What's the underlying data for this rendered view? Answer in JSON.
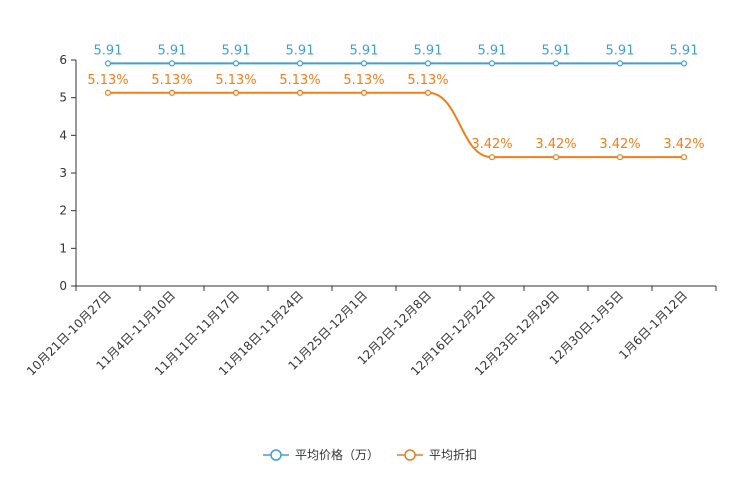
{
  "chart_data": {
    "type": "line",
    "categories": [
      "10月21日-10月27日",
      "11月4日-11月10日",
      "11月11日-11月17日",
      "11月18日-11月24日",
      "11月25日-12月1日",
      "12月2日-12月8日",
      "12月16日-12月22日",
      "12月23日-12月29日",
      "12月30日-1月5日",
      "1月6日-1月12日"
    ],
    "ylim": [
      0,
      6
    ],
    "yticks": [
      0,
      1,
      2,
      3,
      4,
      5,
      6
    ],
    "grid": false,
    "legend_position": "bottom-center",
    "series": [
      {
        "name": "平均价格（万）",
        "color": "#3fa0d6",
        "values": [
          5.91,
          5.91,
          5.91,
          5.91,
          5.91,
          5.91,
          5.91,
          5.91,
          5.91,
          5.91
        ],
        "labels": [
          "5.91",
          "5.91",
          "5.91",
          "5.91",
          "5.91",
          "5.91",
          "5.91",
          "5.91",
          "5.91",
          "5.91"
        ]
      },
      {
        "name": "平均折扣",
        "color": "#f07e1b",
        "values": [
          5.13,
          5.13,
          5.13,
          5.13,
          5.13,
          5.13,
          3.42,
          3.42,
          3.42,
          3.42
        ],
        "labels": [
          "5.13%",
          "5.13%",
          "5.13%",
          "5.13%",
          "5.13%",
          "5.13%",
          "3.42%",
          "3.42%",
          "3.42%",
          "3.42%"
        ]
      }
    ]
  }
}
